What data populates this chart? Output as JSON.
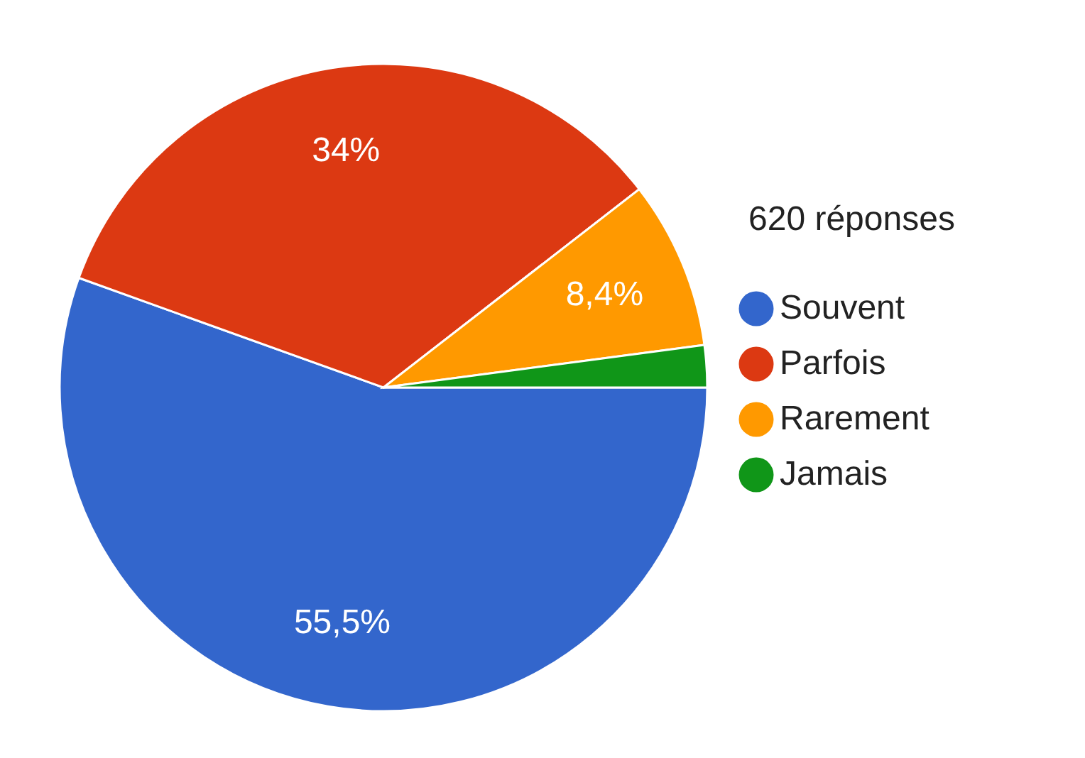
{
  "chart_data": {
    "type": "pie",
    "categories": [
      "Souvent",
      "Parfois",
      "Rarement",
      "Jamais"
    ],
    "values": [
      55.5,
      34,
      8.4,
      2.1
    ],
    "colors": [
      "#3366cc",
      "#dc3912",
      "#ff9900",
      "#109618"
    ],
    "value_labels": [
      "55,5%",
      "34%",
      "8,4%",
      null
    ],
    "annotations": [
      "620  réponses"
    ],
    "legend": "right"
  }
}
